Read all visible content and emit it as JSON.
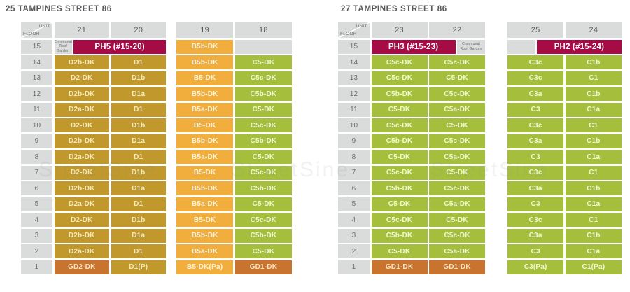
{
  "watermark": "StreetSine",
  "colors": {
    "penthouse": "#a50c46",
    "unit_d_gold": "#c0982b",
    "unit_b_amber": "#f1ae3d",
    "unit_c_green": "#a5bf3d",
    "ground_unit_orange": "#c9742e",
    "grey_cell": "#dadbdb",
    "heading_text": "#57585b"
  },
  "buildings": [
    {
      "title": "25 TAMPINES STREET 86",
      "tables": [
        {
          "floor_column": true,
          "corner_unit_label": "UNIT",
          "corner_floor_label": "FLOOR",
          "unit_columns": [
            "21",
            "20"
          ],
          "rows": [
            {
              "floor": "15",
              "cells": [
                [
                  "Communal Roof Garden",
                  "roof",
                  0.3
                ],
                [
                  "PH5 (#15-20)",
                  "ph",
                  1.7
                ]
              ]
            },
            {
              "floor": "14",
              "cells": [
                [
                  "D2b-DK",
                  "d"
                ],
                [
                  "D1",
                  "d"
                ]
              ]
            },
            {
              "floor": "13",
              "cells": [
                [
                  "D2-DK",
                  "d"
                ],
                [
                  "D1b",
                  "d"
                ]
              ]
            },
            {
              "floor": "12",
              "cells": [
                [
                  "D2b-DK",
                  "d"
                ],
                [
                  "D1a",
                  "d"
                ]
              ]
            },
            {
              "floor": "11",
              "cells": [
                [
                  "D2a-DK",
                  "d"
                ],
                [
                  "D1",
                  "d"
                ]
              ]
            },
            {
              "floor": "10",
              "cells": [
                [
                  "D2-DK",
                  "d"
                ],
                [
                  "D1b",
                  "d"
                ]
              ]
            },
            {
              "floor": "9",
              "cells": [
                [
                  "D2b-DK",
                  "d"
                ],
                [
                  "D1a",
                  "d"
                ]
              ]
            },
            {
              "floor": "8",
              "cells": [
                [
                  "D2a-DK",
                  "d"
                ],
                [
                  "D1",
                  "d"
                ]
              ]
            },
            {
              "floor": "7",
              "cells": [
                [
                  "D2-DK",
                  "d"
                ],
                [
                  "D1b",
                  "d"
                ]
              ]
            },
            {
              "floor": "6",
              "cells": [
                [
                  "D2b-DK",
                  "d"
                ],
                [
                  "D1a",
                  "d"
                ]
              ]
            },
            {
              "floor": "5",
              "cells": [
                [
                  "D2a-DK",
                  "d"
                ],
                [
                  "D1",
                  "d"
                ]
              ]
            },
            {
              "floor": "4",
              "cells": [
                [
                  "D2-DK",
                  "d"
                ],
                [
                  "D1b",
                  "d"
                ]
              ]
            },
            {
              "floor": "3",
              "cells": [
                [
                  "D2b-DK",
                  "d"
                ],
                [
                  "D1a",
                  "d"
                ]
              ]
            },
            {
              "floor": "2",
              "cells": [
                [
                  "D2a-DK",
                  "d"
                ],
                [
                  "D1",
                  "d"
                ]
              ]
            },
            {
              "floor": "1",
              "cells": [
                [
                  "GD2-DK",
                  "gd"
                ],
                [
                  "D1(P)",
                  "d"
                ]
              ]
            }
          ]
        },
        {
          "floor_column": false,
          "unit_columns": [
            "19",
            "18"
          ],
          "rows": [
            {
              "floor": "15",
              "cells": [
                [
                  "B5b-DK",
                  "b"
                ],
                [
                  "",
                  "empty"
                ]
              ]
            },
            {
              "floor": "14",
              "cells": [
                [
                  "B5b-DK",
                  "b"
                ],
                [
                  "C5-DK",
                  "c"
                ]
              ]
            },
            {
              "floor": "13",
              "cells": [
                [
                  "B5-DK",
                  "b"
                ],
                [
                  "C5c-DK",
                  "c"
                ]
              ]
            },
            {
              "floor": "12",
              "cells": [
                [
                  "B5b-DK",
                  "b"
                ],
                [
                  "C5b-DK",
                  "c"
                ]
              ]
            },
            {
              "floor": "11",
              "cells": [
                [
                  "B5a-DK",
                  "b"
                ],
                [
                  "C5-DK",
                  "c"
                ]
              ]
            },
            {
              "floor": "10",
              "cells": [
                [
                  "B5-DK",
                  "b"
                ],
                [
                  "C5c-DK",
                  "c"
                ]
              ]
            },
            {
              "floor": "9",
              "cells": [
                [
                  "B5b-DK",
                  "b"
                ],
                [
                  "C5b-DK",
                  "c"
                ]
              ]
            },
            {
              "floor": "8",
              "cells": [
                [
                  "B5a-DK",
                  "b"
                ],
                [
                  "C5-DK",
                  "c"
                ]
              ]
            },
            {
              "floor": "7",
              "cells": [
                [
                  "B5-DK",
                  "b"
                ],
                [
                  "C5c-DK",
                  "c"
                ]
              ]
            },
            {
              "floor": "6",
              "cells": [
                [
                  "B5b-DK",
                  "b"
                ],
                [
                  "C5b-DK",
                  "c"
                ]
              ]
            },
            {
              "floor": "5",
              "cells": [
                [
                  "B5a-DK",
                  "b"
                ],
                [
                  "C5-DK",
                  "c"
                ]
              ]
            },
            {
              "floor": "4",
              "cells": [
                [
                  "B5-DK",
                  "b"
                ],
                [
                  "C5c-DK",
                  "c"
                ]
              ]
            },
            {
              "floor": "3",
              "cells": [
                [
                  "B5b-DK",
                  "b"
                ],
                [
                  "C5b-DK",
                  "c"
                ]
              ]
            },
            {
              "floor": "2",
              "cells": [
                [
                  "B5a-DK",
                  "b"
                ],
                [
                  "C5-DK",
                  "c"
                ]
              ]
            },
            {
              "floor": "1",
              "cells": [
                [
                  "B5-DK(Pa)",
                  "b"
                ],
                [
                  "GD1-DK",
                  "gd"
                ]
              ]
            }
          ]
        }
      ]
    },
    {
      "title": "27 TAMPINES STREET 86",
      "tables": [
        {
          "floor_column": true,
          "corner_unit_label": "UNIT",
          "corner_floor_label": "FLOOR",
          "unit_columns": [
            "23",
            "22"
          ],
          "rows": [
            {
              "floor": "15",
              "cells": [
                [
                  "PH3 (#15-23)",
                  "ph",
                  1.52
                ],
                [
                  "Communal Roof Garden",
                  "roof",
                  0.48
                ]
              ]
            },
            {
              "floor": "14",
              "cells": [
                [
                  "C5c-DK",
                  "c"
                ],
                [
                  "C5c-DK",
                  "c"
                ]
              ]
            },
            {
              "floor": "13",
              "cells": [
                [
                  "C5c-DK",
                  "c"
                ],
                [
                  "C5-DK",
                  "c"
                ]
              ]
            },
            {
              "floor": "12",
              "cells": [
                [
                  "C5b-DK",
                  "c"
                ],
                [
                  "C5c-DK",
                  "c"
                ]
              ]
            },
            {
              "floor": "11",
              "cells": [
                [
                  "C5-DK",
                  "c"
                ],
                [
                  "C5a-DK",
                  "c"
                ]
              ]
            },
            {
              "floor": "10",
              "cells": [
                [
                  "C5c-DK",
                  "c"
                ],
                [
                  "C5-DK",
                  "c"
                ]
              ]
            },
            {
              "floor": "9",
              "cells": [
                [
                  "C5b-DK",
                  "c"
                ],
                [
                  "C5c-DK",
                  "c"
                ]
              ]
            },
            {
              "floor": "8",
              "cells": [
                [
                  "C5-DK",
                  "c"
                ],
                [
                  "C5a-DK",
                  "c"
                ]
              ]
            },
            {
              "floor": "7",
              "cells": [
                [
                  "C5c-DK",
                  "c"
                ],
                [
                  "C5-DK",
                  "c"
                ]
              ]
            },
            {
              "floor": "6",
              "cells": [
                [
                  "C5b-DK",
                  "c"
                ],
                [
                  "C5c-DK",
                  "c"
                ]
              ]
            },
            {
              "floor": "5",
              "cells": [
                [
                  "C5-DK",
                  "c"
                ],
                [
                  "C5a-DK",
                  "c"
                ]
              ]
            },
            {
              "floor": "4",
              "cells": [
                [
                  "C5c-DK",
                  "c"
                ],
                [
                  "C5-DK",
                  "c"
                ]
              ]
            },
            {
              "floor": "3",
              "cells": [
                [
                  "C5b-DK",
                  "c"
                ],
                [
                  "C5c-DK",
                  "c"
                ]
              ]
            },
            {
              "floor": "2",
              "cells": [
                [
                  "C5-DK",
                  "c"
                ],
                [
                  "C5a-DK",
                  "c"
                ]
              ]
            },
            {
              "floor": "1",
              "cells": [
                [
                  "GD1-DK",
                  "gd"
                ],
                [
                  "GD1-DK",
                  "gd"
                ]
              ]
            }
          ]
        },
        {
          "floor_column": false,
          "unit_columns": [
            "25",
            "24"
          ],
          "rows": [
            {
              "floor": "15",
              "cells": [
                [
                  "",
                  "empty",
                  0.49
                ],
                [
                  "PH2 (#15-24)",
                  "ph",
                  1.51
                ]
              ]
            },
            {
              "floor": "14",
              "cells": [
                [
                  "C3c",
                  "c"
                ],
                [
                  "C1b",
                  "c"
                ]
              ]
            },
            {
              "floor": "13",
              "cells": [
                [
                  "C3c",
                  "c"
                ],
                [
                  "C1",
                  "c"
                ]
              ]
            },
            {
              "floor": "12",
              "cells": [
                [
                  "C3a",
                  "c"
                ],
                [
                  "C1b",
                  "c"
                ]
              ]
            },
            {
              "floor": "11",
              "cells": [
                [
                  "C3",
                  "c"
                ],
                [
                  "C1a",
                  "c"
                ]
              ]
            },
            {
              "floor": "10",
              "cells": [
                [
                  "C3c",
                  "c"
                ],
                [
                  "C1",
                  "c"
                ]
              ]
            },
            {
              "floor": "9",
              "cells": [
                [
                  "C3a",
                  "c"
                ],
                [
                  "C1b",
                  "c"
                ]
              ]
            },
            {
              "floor": "8",
              "cells": [
                [
                  "C3",
                  "c"
                ],
                [
                  "C1a",
                  "c"
                ]
              ]
            },
            {
              "floor": "7",
              "cells": [
                [
                  "C3c",
                  "c"
                ],
                [
                  "C1",
                  "c"
                ]
              ]
            },
            {
              "floor": "6",
              "cells": [
                [
                  "C3a",
                  "c"
                ],
                [
                  "C1b",
                  "c"
                ]
              ]
            },
            {
              "floor": "5",
              "cells": [
                [
                  "C3",
                  "c"
                ],
                [
                  "C1a",
                  "c"
                ]
              ]
            },
            {
              "floor": "4",
              "cells": [
                [
                  "C3c",
                  "c"
                ],
                [
                  "C1",
                  "c"
                ]
              ]
            },
            {
              "floor": "3",
              "cells": [
                [
                  "C3a",
                  "c"
                ],
                [
                  "C1b",
                  "c"
                ]
              ]
            },
            {
              "floor": "2",
              "cells": [
                [
                  "C3",
                  "c"
                ],
                [
                  "C1a",
                  "c"
                ]
              ]
            },
            {
              "floor": "1",
              "cells": [
                [
                  "C3(Pa)",
                  "c"
                ],
                [
                  "C1(Pa)",
                  "c"
                ]
              ]
            }
          ]
        }
      ]
    }
  ]
}
